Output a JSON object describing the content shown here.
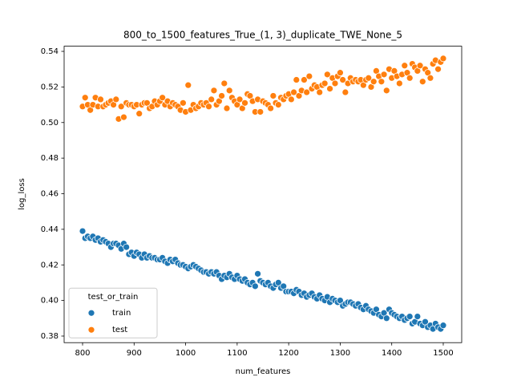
{
  "chart_data": {
    "type": "scatter",
    "title": "800_to_1500_features_True_(1, 3)_duplicate_TWE_None_5",
    "x_label": "num_features",
    "y_label": "log_loss",
    "legend_title": "test_or_train",
    "legend_position": "lower left",
    "x": [
      800,
      805,
      810,
      815,
      820,
      825,
      830,
      835,
      840,
      845,
      850,
      855,
      860,
      865,
      870,
      875,
      880,
      885,
      890,
      895,
      900,
      905,
      910,
      915,
      920,
      925,
      930,
      935,
      940,
      945,
      950,
      955,
      960,
      965,
      970,
      975,
      980,
      985,
      990,
      995,
      1000,
      1005,
      1010,
      1015,
      1020,
      1025,
      1030,
      1035,
      1040,
      1045,
      1050,
      1055,
      1060,
      1065,
      1070,
      1075,
      1080,
      1085,
      1090,
      1095,
      1100,
      1105,
      1110,
      1115,
      1120,
      1125,
      1130,
      1135,
      1140,
      1145,
      1150,
      1155,
      1160,
      1165,
      1170,
      1175,
      1180,
      1185,
      1190,
      1195,
      1200,
      1205,
      1210,
      1215,
      1220,
      1225,
      1230,
      1235,
      1240,
      1245,
      1250,
      1255,
      1260,
      1265,
      1270,
      1275,
      1280,
      1285,
      1290,
      1295,
      1300,
      1305,
      1310,
      1315,
      1320,
      1325,
      1330,
      1335,
      1340,
      1345,
      1350,
      1355,
      1360,
      1365,
      1370,
      1375,
      1380,
      1385,
      1390,
      1395,
      1400,
      1405,
      1410,
      1415,
      1420,
      1425,
      1430,
      1435,
      1440,
      1445,
      1450,
      1455,
      1460,
      1465,
      1470,
      1475,
      1480,
      1485,
      1490,
      1495,
      1500
    ],
    "series": [
      {
        "name": "train",
        "color": "#1f77b4",
        "values": [
          0.439,
          0.435,
          0.436,
          0.435,
          0.436,
          0.434,
          0.435,
          0.433,
          0.434,
          0.433,
          0.432,
          0.43,
          0.432,
          0.432,
          0.431,
          0.429,
          0.432,
          0.43,
          0.426,
          0.427,
          0.425,
          0.427,
          0.426,
          0.424,
          0.426,
          0.424,
          0.425,
          0.424,
          0.424,
          0.423,
          0.423,
          0.424,
          0.422,
          0.421,
          0.423,
          0.422,
          0.423,
          0.421,
          0.42,
          0.42,
          0.419,
          0.418,
          0.419,
          0.42,
          0.419,
          0.418,
          0.417,
          0.416,
          0.416,
          0.415,
          0.416,
          0.415,
          0.416,
          0.414,
          0.412,
          0.414,
          0.413,
          0.415,
          0.413,
          0.412,
          0.414,
          0.412,
          0.411,
          0.412,
          0.41,
          0.409,
          0.41,
          0.408,
          0.415,
          0.411,
          0.41,
          0.409,
          0.41,
          0.408,
          0.407,
          0.409,
          0.41,
          0.407,
          0.408,
          0.405,
          0.405,
          0.405,
          0.404,
          0.406,
          0.405,
          0.403,
          0.404,
          0.402,
          0.403,
          0.404,
          0.402,
          0.401,
          0.403,
          0.401,
          0.4,
          0.402,
          0.399,
          0.401,
          0.4,
          0.399,
          0.4,
          0.397,
          0.398,
          0.399,
          0.399,
          0.398,
          0.397,
          0.398,
          0.396,
          0.395,
          0.397,
          0.395,
          0.394,
          0.393,
          0.395,
          0.392,
          0.391,
          0.393,
          0.39,
          0.395,
          0.393,
          0.392,
          0.391,
          0.39,
          0.391,
          0.389,
          0.39,
          0.391,
          0.387,
          0.388,
          0.391,
          0.387,
          0.386,
          0.388,
          0.385,
          0.386,
          0.384,
          0.387,
          0.385,
          0.384,
          0.386
        ]
      },
      {
        "name": "test",
        "color": "#ff7f0e",
        "values": [
          0.509,
          0.514,
          0.51,
          0.507,
          0.51,
          0.514,
          0.509,
          0.513,
          0.509,
          0.51,
          0.511,
          0.512,
          0.51,
          0.513,
          0.502,
          0.509,
          0.503,
          0.511,
          0.51,
          0.51,
          0.509,
          0.51,
          0.505,
          0.51,
          0.511,
          0.511,
          0.508,
          0.509,
          0.512,
          0.51,
          0.512,
          0.514,
          0.51,
          0.512,
          0.509,
          0.511,
          0.51,
          0.509,
          0.507,
          0.511,
          0.506,
          0.521,
          0.507,
          0.51,
          0.508,
          0.509,
          0.511,
          0.51,
          0.511,
          0.509,
          0.513,
          0.518,
          0.51,
          0.512,
          0.515,
          0.522,
          0.508,
          0.518,
          0.514,
          0.512,
          0.51,
          0.513,
          0.508,
          0.511,
          0.516,
          0.515,
          0.512,
          0.506,
          0.513,
          0.506,
          0.512,
          0.511,
          0.51,
          0.508,
          0.515,
          0.511,
          0.51,
          0.514,
          0.513,
          0.515,
          0.516,
          0.513,
          0.517,
          0.524,
          0.515,
          0.518,
          0.524,
          0.517,
          0.526,
          0.519,
          0.521,
          0.52,
          0.517,
          0.521,
          0.522,
          0.527,
          0.519,
          0.525,
          0.522,
          0.526,
          0.528,
          0.524,
          0.517,
          0.522,
          0.525,
          0.523,
          0.524,
          0.523,
          0.524,
          0.521,
          0.524,
          0.525,
          0.52,
          0.523,
          0.529,
          0.526,
          0.523,
          0.527,
          0.518,
          0.53,
          0.525,
          0.529,
          0.526,
          0.522,
          0.527,
          0.532,
          0.528,
          0.525,
          0.533,
          0.531,
          0.529,
          0.532,
          0.523,
          0.53,
          0.528,
          0.525,
          0.533,
          0.535,
          0.53,
          0.534,
          0.536
        ]
      }
    ],
    "xlim": [
      764.2,
      1535.8
    ],
    "ylim": [
      0.3763,
      0.5429
    ],
    "xticks": [
      800,
      900,
      1000,
      1100,
      1200,
      1300,
      1400,
      1500
    ],
    "yticks": [
      0.38,
      {
        "value": 0.4,
        "label": "0.40"
      },
      0.42,
      0.44,
      0.46,
      0.48,
      {
        "value": 0.5,
        "label": "0.50"
      },
      0.52,
      0.54
    ]
  }
}
